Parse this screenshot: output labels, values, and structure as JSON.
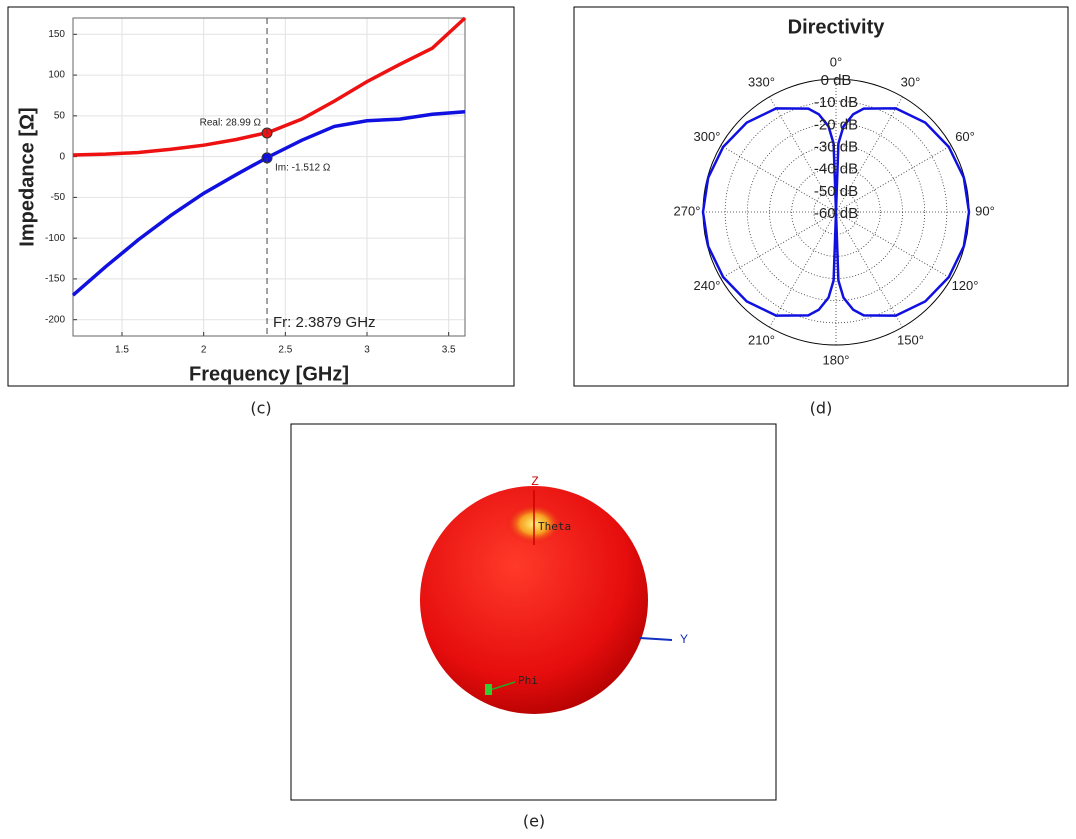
{
  "chart_data": [
    {
      "type": "line",
      "caption": "(c)",
      "xlabel": "Frequency [GHz]",
      "ylabel": "Impedance [Ω]",
      "x": [
        1.2,
        1.4,
        1.6,
        1.8,
        2.0,
        2.2,
        2.4,
        2.6,
        2.8,
        3.0,
        3.2,
        3.4,
        3.6
      ],
      "series": [
        {
          "color": "#ee1111",
          "values": [
            2,
            3,
            5,
            9,
            14,
            21,
            30,
            46,
            68,
            92,
            113,
            133,
            170
          ]
        },
        {
          "color": "#1010e0",
          "values": [
            -170,
            -135,
            -102,
            -72,
            -45,
            -22,
            0,
            20,
            37,
            44,
            46,
            52,
            55
          ]
        }
      ],
      "xlim": [
        1.2,
        3.6
      ],
      "xticks": [
        1.5,
        2,
        2.5,
        3,
        3.5
      ],
      "ylim": [
        -220,
        170
      ],
      "yticks": [
        -200,
        -150,
        -100,
        -50,
        0,
        50,
        100,
        150
      ],
      "grid": true,
      "annotations": [
        {
          "text": "Real: 28.99 Ω",
          "x": 2.3879,
          "y": 28.99,
          "color": "#ee1111"
        },
        {
          "text": "Im: -1.512 Ω",
          "x": 2.3879,
          "y": -1.512,
          "color": "#1010e0"
        },
        {
          "text": "Fr: 2.3879 GHz",
          "x": 2.3879
        }
      ]
    },
    {
      "type": "polar",
      "caption": "(d)",
      "title": "Directivity",
      "theta": [
        0,
        2,
        5,
        10,
        15,
        30,
        45,
        60,
        75,
        90,
        105,
        120,
        135,
        150,
        165,
        170,
        175,
        178,
        180,
        182,
        185,
        190,
        195,
        210,
        225,
        240,
        255,
        270,
        285,
        300,
        315,
        330,
        345,
        350,
        355,
        358,
        360
      ],
      "series": [
        {
          "color": "#1010e0",
          "values": [
            -60,
            -29.14,
            -21.19,
            -15.21,
            -11.74,
            -6.02,
            -3.01,
            -1.25,
            -0.3,
            0,
            -0.3,
            -1.25,
            -3.01,
            -6.02,
            -11.74,
            -15.21,
            -21.19,
            -29.14,
            -60,
            -29.14,
            -21.19,
            -15.21,
            -11.74,
            -6.02,
            -3.01,
            -1.25,
            -0.3,
            0,
            -0.3,
            -1.25,
            -3.01,
            -6.02,
            -11.74,
            -15.21,
            -21.19,
            -29.14,
            -60
          ]
        }
      ],
      "rlim": [
        -60,
        0
      ],
      "rticks": [
        {
          "value": 0,
          "label": "0 dB"
        },
        {
          "value": -10,
          "label": "-10 dB"
        },
        {
          "value": -20,
          "label": "-20 dB"
        },
        {
          "value": -30,
          "label": "-30 dB"
        },
        {
          "value": -40,
          "label": "-40 dB"
        },
        {
          "value": -50,
          "label": "-50 dB"
        },
        {
          "value": -60,
          "label": "-60 dB"
        }
      ],
      "thetaticks": [
        {
          "value": 0,
          "label": "0°"
        },
        {
          "value": 30,
          "label": "30°"
        },
        {
          "value": 60,
          "label": "60°"
        },
        {
          "value": 90,
          "label": "90°"
        },
        {
          "value": 120,
          "label": "120°"
        },
        {
          "value": 150,
          "label": "150°"
        },
        {
          "value": 180,
          "label": "180°"
        },
        {
          "value": 210,
          "label": "210°"
        },
        {
          "value": 240,
          "label": "240°"
        },
        {
          "value": 270,
          "label": "270°"
        },
        {
          "value": 300,
          "label": "300°"
        },
        {
          "value": 330,
          "label": "330°"
        }
      ]
    },
    {
      "type": "pattern3d",
      "caption": "(e)",
      "labels": {
        "z": "Z",
        "theta": "Theta",
        "y": "Y",
        "phi": "Phi"
      }
    }
  ]
}
